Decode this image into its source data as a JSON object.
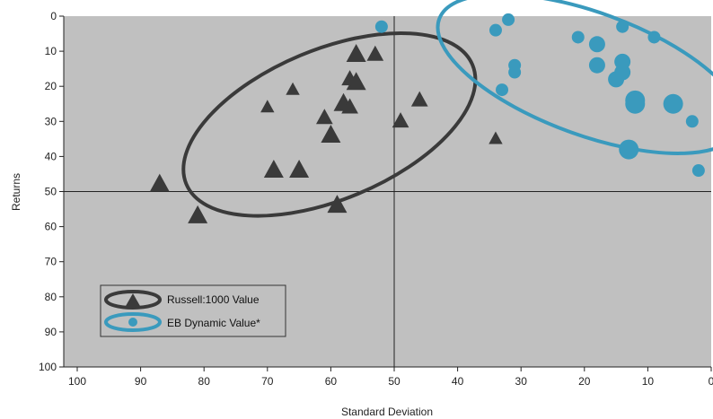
{
  "chart_data": {
    "type": "scatter",
    "title": "",
    "xlabel": "Standard Deviation",
    "ylabel": "Returns",
    "xlim": [
      100,
      0
    ],
    "ylim": [
      0,
      100
    ],
    "x_reversed": true,
    "y_reversed": true,
    "x_ticks": [
      100,
      90,
      80,
      70,
      60,
      50,
      40,
      30,
      20,
      10,
      0
    ],
    "y_ticks": [
      0,
      10,
      20,
      30,
      40,
      50,
      60,
      70,
      80,
      90,
      100
    ],
    "reference_lines": {
      "x": 50,
      "y": 50
    },
    "background_color": "#c0c0c0",
    "grid": false,
    "legend_position": "bottom-left",
    "series": [
      {
        "name": "Russell:1000 Value",
        "marker": "triangle",
        "color": "#3a3a3a",
        "ellipse_color": "#3a3a3a",
        "points": [
          {
            "x": 87,
            "y": 48,
            "size": 3
          },
          {
            "x": 81,
            "y": 57,
            "size": 3
          },
          {
            "x": 70,
            "y": 26,
            "size": 1
          },
          {
            "x": 69,
            "y": 44,
            "size": 3
          },
          {
            "x": 66,
            "y": 21,
            "size": 1
          },
          {
            "x": 65,
            "y": 44,
            "size": 3
          },
          {
            "x": 61,
            "y": 29,
            "size": 2
          },
          {
            "x": 60,
            "y": 34,
            "size": 3
          },
          {
            "x": 59,
            "y": 54,
            "size": 3
          },
          {
            "x": 58,
            "y": 25,
            "size": 3
          },
          {
            "x": 57,
            "y": 18,
            "size": 2
          },
          {
            "x": 57,
            "y": 26,
            "size": 2
          },
          {
            "x": 56,
            "y": 11,
            "size": 3
          },
          {
            "x": 56,
            "y": 19,
            "size": 3
          },
          {
            "x": 53,
            "y": 11,
            "size": 2
          },
          {
            "x": 49,
            "y": 30,
            "size": 2
          },
          {
            "x": 46,
            "y": 24,
            "size": 2
          },
          {
            "x": 34,
            "y": 35,
            "size": 1
          }
        ]
      },
      {
        "name": "EB Dynamic Value*",
        "marker": "circle",
        "color": "#3a9abd",
        "ellipse_color": "#3a9abd",
        "points": [
          {
            "x": 52,
            "y": 3,
            "size": 1
          },
          {
            "x": 34,
            "y": 4,
            "size": 1
          },
          {
            "x": 32,
            "y": 1,
            "size": 1
          },
          {
            "x": 33,
            "y": 21,
            "size": 1
          },
          {
            "x": 31,
            "y": 14,
            "size": 1
          },
          {
            "x": 31,
            "y": 16,
            "size": 1
          },
          {
            "x": 21,
            "y": 6,
            "size": 1
          },
          {
            "x": 18,
            "y": 8,
            "size": 2
          },
          {
            "x": 18,
            "y": 14,
            "size": 2
          },
          {
            "x": 14,
            "y": 3,
            "size": 1
          },
          {
            "x": 14,
            "y": 13,
            "size": 2
          },
          {
            "x": 14,
            "y": 16,
            "size": 2
          },
          {
            "x": 15,
            "y": 18,
            "size": 2
          },
          {
            "x": 12,
            "y": 24,
            "size": 3
          },
          {
            "x": 12,
            "y": 25,
            "size": 3
          },
          {
            "x": 13,
            "y": 38,
            "size": 3
          },
          {
            "x": 9,
            "y": 6,
            "size": 1
          },
          {
            "x": 6,
            "y": 25,
            "size": 3
          },
          {
            "x": 3,
            "y": 30,
            "size": 1
          },
          {
            "x": 2,
            "y": 44,
            "size": 1
          }
        ]
      }
    ]
  }
}
